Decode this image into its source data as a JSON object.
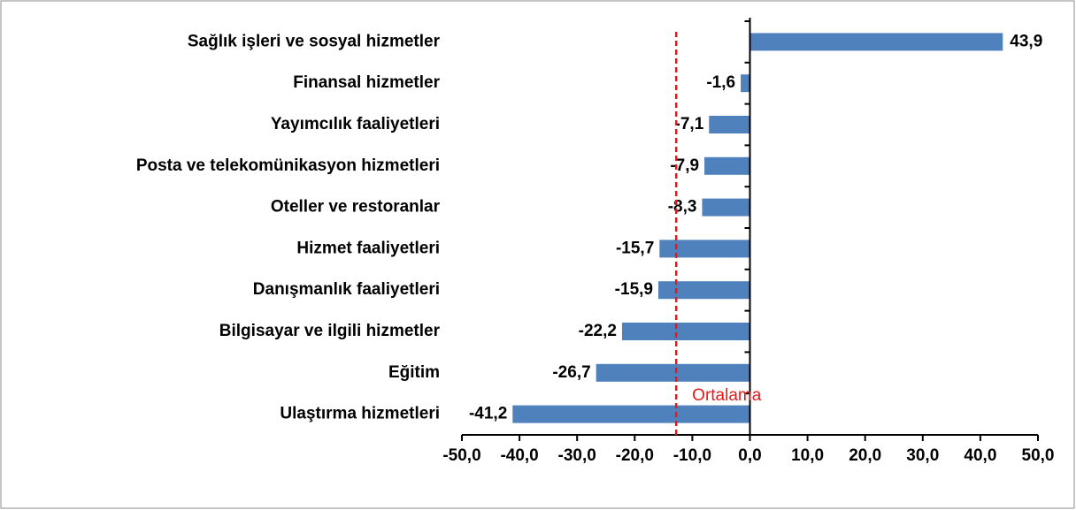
{
  "chart_data": {
    "type": "bar",
    "orientation": "horizontal",
    "categories": [
      "Sağlık işleri ve sosyal hizmetler",
      "Finansal hizmetler",
      "Yayımcılık faaliyetleri",
      "Posta ve telekomünikasyon hizmetleri",
      "Oteller ve restoranlar",
      "Hizmet faaliyetleri",
      "Danışmanlık faaliyetleri",
      "Bilgisayar ve ilgili hizmetler",
      "Eğitim",
      "Ulaştırma hizmetleri"
    ],
    "values": [
      43.9,
      -1.6,
      -7.1,
      -7.9,
      -8.3,
      -15.7,
      -15.9,
      -22.2,
      -26.7,
      -41.2
    ],
    "value_labels": [
      "43,9",
      "-1,6",
      "-7,1",
      "-7,9",
      "-8,3",
      "-15,7",
      "-15,9",
      "-22,2",
      "-26,7",
      "-41,2"
    ],
    "color": "#4f81bd",
    "xlim": [
      -50,
      50
    ],
    "xticks": [
      {
        "value": -50,
        "label": "-50,0"
      },
      {
        "value": -40,
        "label": "-40,0"
      },
      {
        "value": -30,
        "label": "-30,0"
      },
      {
        "value": -20,
        "label": "-20,0"
      },
      {
        "value": -10,
        "label": "-10,0"
      },
      {
        "value": 0,
        "label": "0,0"
      },
      {
        "value": 10,
        "label": "10,0"
      },
      {
        "value": 20,
        "label": "20,0"
      },
      {
        "value": 30,
        "label": "30,0"
      },
      {
        "value": 40,
        "label": "40,0"
      },
      {
        "value": 50,
        "label": "50,0"
      }
    ],
    "mean_line": {
      "value": -12.8,
      "label": "Ortalama",
      "color": "#e31a1c"
    }
  }
}
